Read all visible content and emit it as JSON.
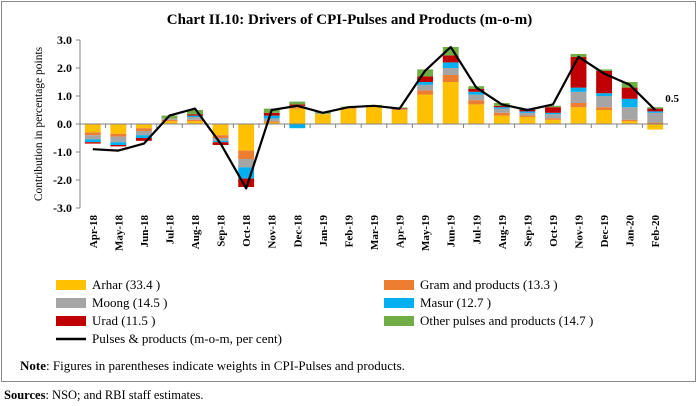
{
  "title": "Chart II.10: Drivers of CPI-Pulses and Products (m-o-m)",
  "note_label": "Note",
  "note_text": ": Figures in parentheses indicate weights in CPI-Pulses and products.",
  "sources_label": "Sources",
  "sources_text": ": NSO; and RBI staff estimates.",
  "chart_data": {
    "type": "bar",
    "stacked": true,
    "ylabel": "Contribution in percentage points",
    "ylim": [
      -3.0,
      3.0
    ],
    "yticks": [
      "3.0",
      "2.0",
      "1.0",
      "0.0",
      "-1.0",
      "-2.0",
      "-3.0"
    ],
    "ytick_values": [
      3,
      2,
      1,
      0,
      -1,
      -2,
      -3
    ],
    "categories": [
      "Apr-18",
      "May-18",
      "Jun-18",
      "Jul-18",
      "Aug-18",
      "Sep-18",
      "Oct-18",
      "Nov-18",
      "Dec-18",
      "Jan-19",
      "Feb-19",
      "Mar-19",
      "Apr-19",
      "May-19",
      "Jun-19",
      "Jul-19",
      "Aug-19",
      "Sep-19",
      "Oct-19",
      "Nov-19",
      "Dec-19",
      "Jan-20",
      "Feb-20"
    ],
    "series": [
      {
        "name": "Arhar (33.4 )",
        "color": "#FFC000",
        "values": [
          -0.3,
          -0.35,
          -0.15,
          0.1,
          0.1,
          -0.4,
          -0.95,
          0.05,
          0.55,
          0.35,
          0.55,
          0.6,
          0.5,
          1.05,
          1.5,
          0.7,
          0.3,
          0.25,
          0.15,
          0.6,
          0.5,
          0.1,
          -0.2
        ]
      },
      {
        "name": "Gram and products (13.3 )",
        "color": "#ED7D31",
        "values": [
          -0.1,
          -0.1,
          -0.1,
          0.05,
          0.05,
          -0.1,
          -0.3,
          0.05,
          0.05,
          0.0,
          0.03,
          0.03,
          0.03,
          0.15,
          0.25,
          0.15,
          0.1,
          0.05,
          0.05,
          0.15,
          0.1,
          0.05,
          0.05
        ]
      },
      {
        "name": "Moong (14.5 )",
        "color": "#A5A5A5",
        "values": [
          -0.15,
          -0.2,
          -0.15,
          0.05,
          0.1,
          -0.1,
          -0.3,
          0.1,
          0.05,
          0.02,
          0.02,
          0.03,
          0.02,
          0.2,
          0.25,
          0.2,
          0.15,
          0.1,
          0.15,
          0.4,
          0.4,
          0.45,
          0.35
        ]
      },
      {
        "name": "Masur (12.7 )",
        "color": "#00B0F0",
        "values": [
          -0.1,
          -0.1,
          -0.1,
          0.0,
          0.05,
          -0.05,
          -0.4,
          0.1,
          -0.15,
          0.0,
          0.0,
          0.0,
          0.0,
          0.1,
          0.2,
          0.1,
          0.05,
          0.05,
          0.05,
          0.15,
          0.1,
          0.3,
          0.05
        ]
      },
      {
        "name": "Urad (11.5 )",
        "color": "#C00000",
        "values": [
          -0.05,
          -0.05,
          -0.1,
          0.0,
          0.05,
          -0.1,
          -0.3,
          0.1,
          0.05,
          0.0,
          0.0,
          0.0,
          0.02,
          0.2,
          0.25,
          0.1,
          0.05,
          0.05,
          0.2,
          1.1,
          0.8,
          0.4,
          0.1
        ]
      },
      {
        "name": "Other pulses and products (14.7 )",
        "color": "#70AD47",
        "values": [
          0.0,
          0.0,
          0.0,
          0.1,
          0.15,
          0.0,
          0.0,
          0.15,
          0.1,
          0.05,
          0.02,
          0.02,
          0.02,
          0.25,
          0.3,
          0.1,
          0.1,
          0.05,
          0.05,
          0.1,
          0.05,
          0.2,
          0.05
        ]
      }
    ],
    "line": {
      "name": "Pulses & products (m-o-m, per cent)",
      "color": "#000000",
      "values": [
        -0.9,
        -0.95,
        -0.7,
        0.3,
        0.55,
        -0.7,
        -2.3,
        0.5,
        0.65,
        0.4,
        0.6,
        0.65,
        0.55,
        1.9,
        2.75,
        1.3,
        0.7,
        0.5,
        0.7,
        2.4,
        1.8,
        1.4,
        0.5
      ]
    },
    "annotation": {
      "text": "0.5",
      "index": 22
    },
    "legend": [
      {
        "label": "Arhar (33.4 )",
        "color": "#FFC000",
        "kind": "box"
      },
      {
        "label": "Gram and products (13.3 )",
        "color": "#ED7D31",
        "kind": "box"
      },
      {
        "label": "Moong (14.5 )",
        "color": "#A5A5A5",
        "kind": "box"
      },
      {
        "label": "Masur (12.7 )",
        "color": "#00B0F0",
        "kind": "box"
      },
      {
        "label": "Urad (11.5 )",
        "color": "#C00000",
        "kind": "box"
      },
      {
        "label": "Other pulses and products (14.7 )",
        "color": "#70AD47",
        "kind": "box"
      },
      {
        "label": "Pulses & products (m-o-m, per cent)",
        "color": "#000000",
        "kind": "line"
      }
    ]
  }
}
